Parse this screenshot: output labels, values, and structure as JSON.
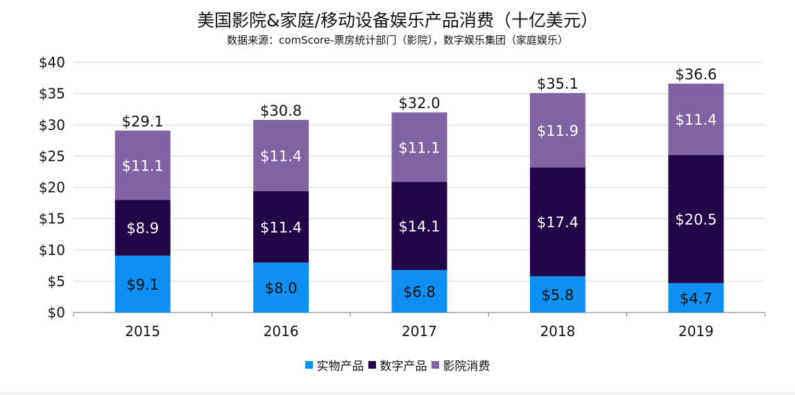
{
  "chart_data": {
    "type": "bar",
    "stacked": true,
    "title": "美国影院&家庭/移动设备娱乐产品消费（十亿美元）",
    "subtitle": "数据来源：comScore-票房统计部门（影院），数字娱乐集团（家庭娱乐）",
    "categories": [
      "2015",
      "2016",
      "2017",
      "2018",
      "2019"
    ],
    "series": [
      {
        "name": "实物产品",
        "color": "#0f8ff2",
        "values": [
          9.1,
          8.0,
          6.8,
          5.8,
          4.7
        ],
        "labels": [
          "$9.1",
          "$8.0",
          "$6.8",
          "$5.8",
          "$4.7"
        ],
        "label_color": "#111111"
      },
      {
        "name": "数字产品",
        "color": "#22064a",
        "values": [
          8.9,
          11.4,
          14.1,
          17.4,
          20.5
        ],
        "labels": [
          "$8.9",
          "$11.4",
          "$14.1",
          "$17.4",
          "$20.5"
        ],
        "label_color": "#ffffff"
      },
      {
        "name": "影院消费",
        "color": "#8064a2",
        "values": [
          11.1,
          11.4,
          11.1,
          11.9,
          11.4
        ],
        "labels": [
          "$11.1",
          "$11.4",
          "$11.1",
          "$11.9",
          "$11.4"
        ],
        "label_color": "#ffffff"
      }
    ],
    "totals": [
      "$29.1",
      "$30.8",
      "$32.0",
      "$35.1",
      "$36.6"
    ],
    "total_values": [
      29.1,
      30.8,
      32.0,
      35.1,
      36.6
    ],
    "ylim": [
      0,
      40
    ],
    "yticks": [
      0,
      5,
      10,
      15,
      20,
      25,
      30,
      35,
      40
    ],
    "ytick_labels": [
      "$0",
      "$5",
      "$10",
      "$15",
      "$20",
      "$25",
      "$30",
      "$35",
      "$40"
    ],
    "grid": true,
    "legend": "bottom-center"
  }
}
